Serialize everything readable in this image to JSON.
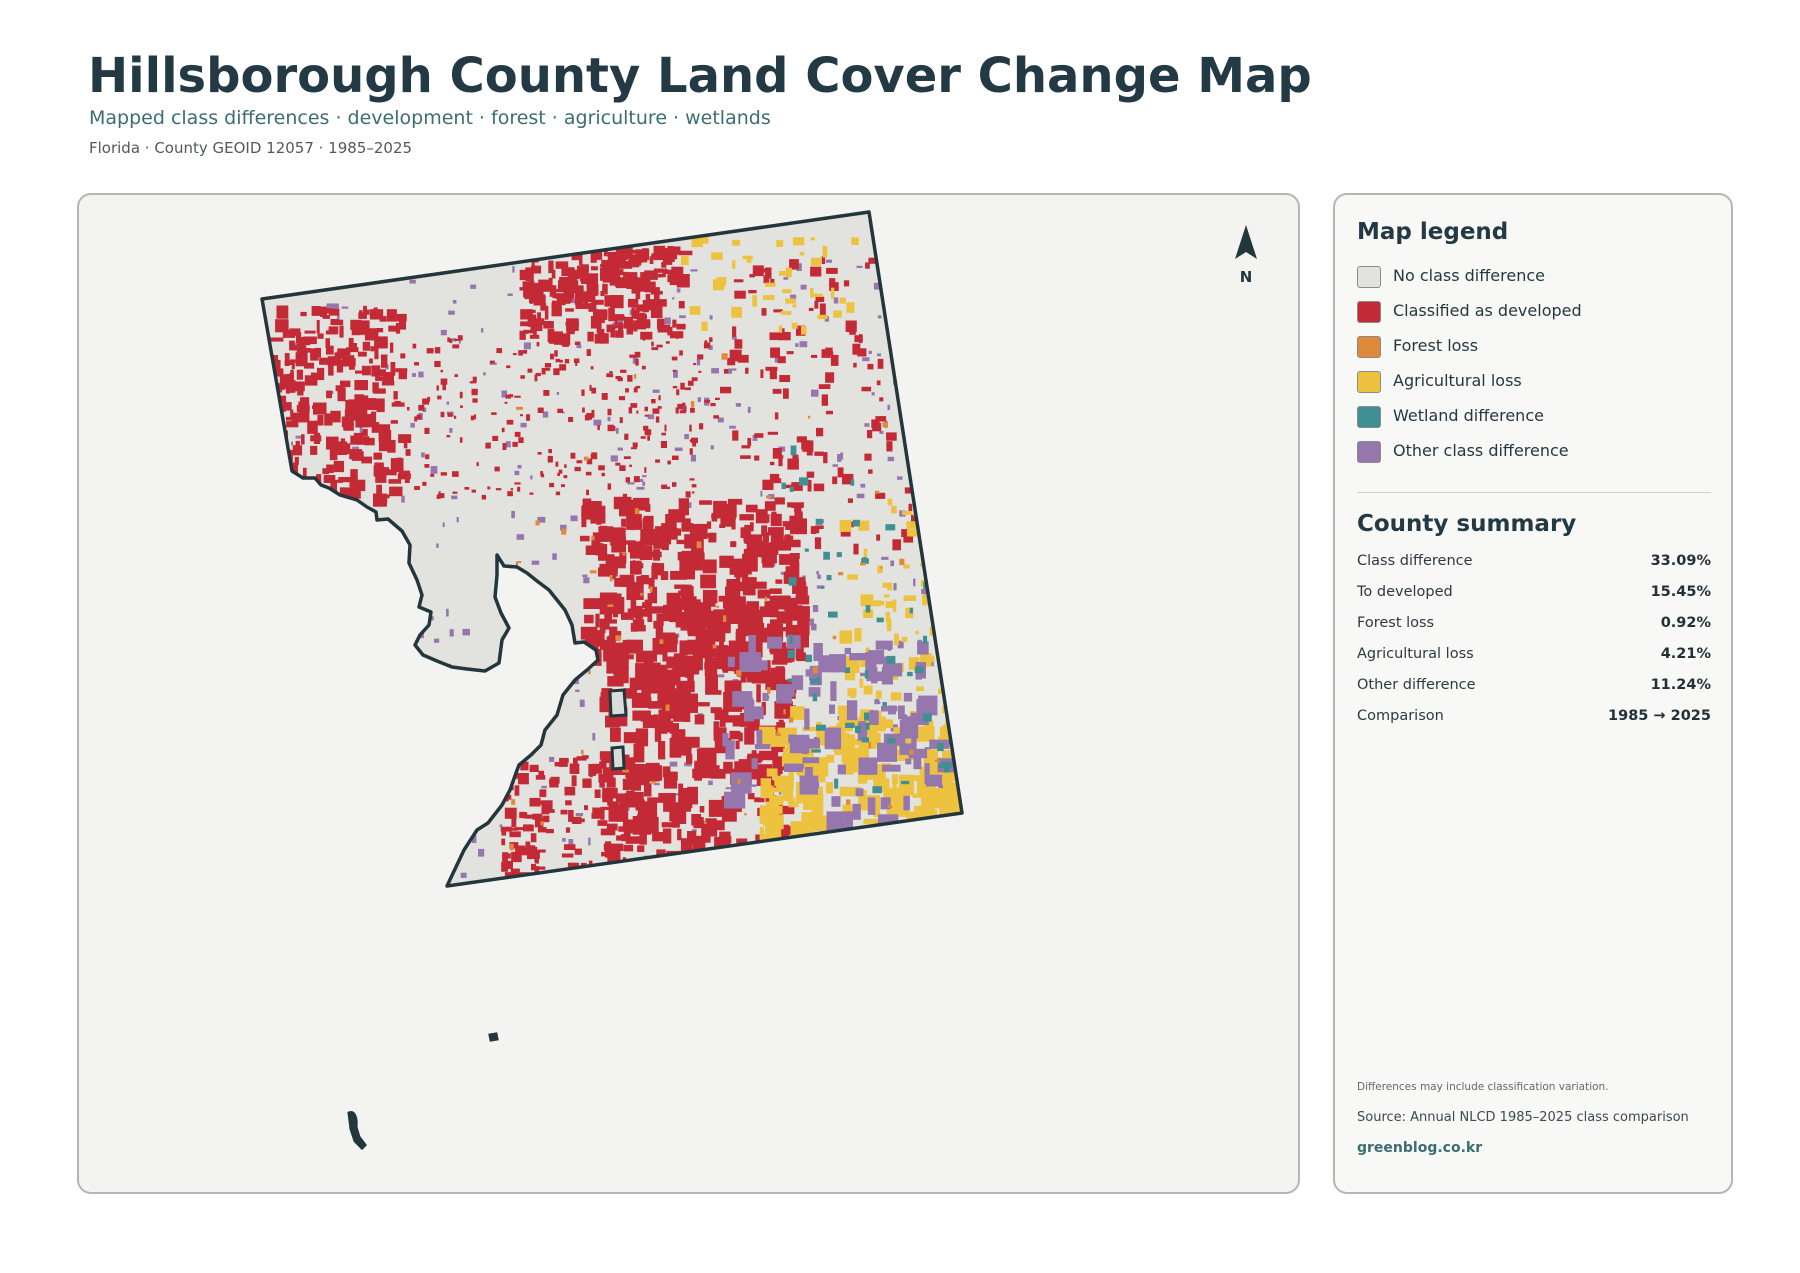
{
  "header": {
    "title": "Hillsborough County Land Cover Change Map",
    "subtitle": "Mapped class differences · development · forest · agriculture · wetlands",
    "meta": "Florida · County GEOID 12057 · 1985–2025"
  },
  "map": {
    "north_label": "N",
    "colors": {
      "background": "#f3f3f1",
      "county_fill": "#e2e2df",
      "outline": "#22363c",
      "developed": "#c42a35",
      "forest_loss": "#df8a3a",
      "agricultural_loss": "#edc23e",
      "wetland": "#3f8f93",
      "other": "#9577ad"
    }
  },
  "legend": {
    "title": "Map legend",
    "items": [
      {
        "label": "No class difference",
        "color": "#e2e2df"
      },
      {
        "label": "Classified as developed",
        "color": "#c42a35"
      },
      {
        "label": "Forest loss",
        "color": "#df8a3a"
      },
      {
        "label": "Agricultural loss",
        "color": "#edc23e"
      },
      {
        "label": "Wetland difference",
        "color": "#3f8f93"
      },
      {
        "label": "Other class difference",
        "color": "#9577ad"
      }
    ]
  },
  "summary": {
    "title": "County summary",
    "rows": [
      {
        "label": "Class difference",
        "value": "33.09%"
      },
      {
        "label": "To developed",
        "value": "15.45%"
      },
      {
        "label": "Forest loss",
        "value": "0.92%"
      },
      {
        "label": "Agricultural loss",
        "value": "4.21%"
      },
      {
        "label": "Other difference",
        "value": "11.24%"
      },
      {
        "label": "Comparison",
        "value": "1985 → 2025"
      }
    ]
  },
  "footer": {
    "note": "Differences may include classification variation.",
    "source": "Source: Annual NLCD 1985–2025 class comparison",
    "site": "greenblog.co.kr"
  }
}
